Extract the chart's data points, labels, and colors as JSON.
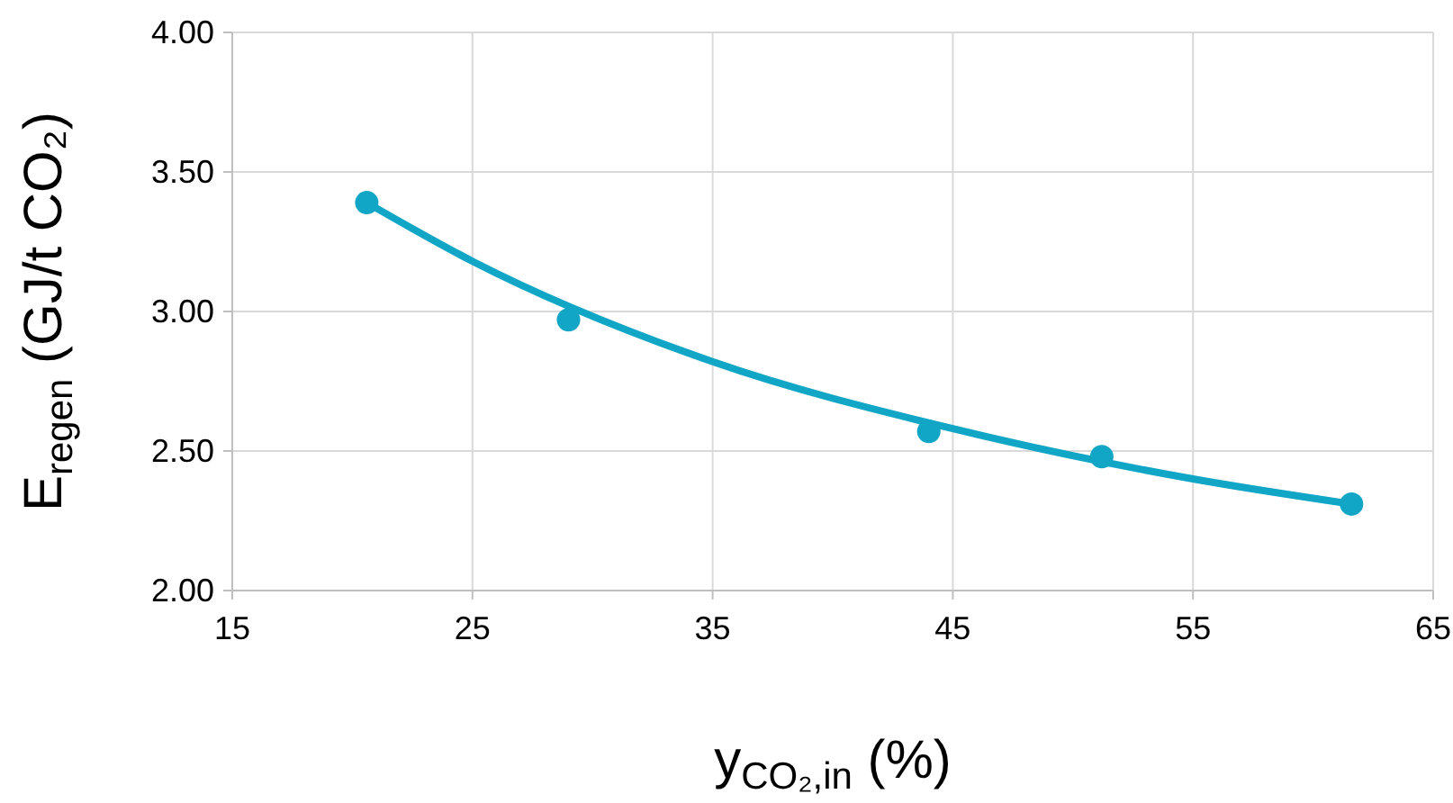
{
  "chart_data": {
    "type": "scatter",
    "xlabel": "y$_{CO₂,in}$ (%)",
    "ylabel": "E$_{regen}$ (GJ/t CO₂)",
    "xlim": [
      15,
      65
    ],
    "xticks": [
      15,
      25,
      35,
      45,
      55,
      65
    ],
    "ylim": [
      2,
      4
    ],
    "yticks": [
      {
        "value": 2,
        "label": "2.00"
      },
      {
        "value": 2.5,
        "label": "2.50"
      },
      {
        "value": 3,
        "label": "3.00"
      },
      {
        "value": 3.5,
        "label": "3.50"
      },
      {
        "value": 4,
        "label": "4.00"
      }
    ],
    "grid": true,
    "marker": "circle",
    "series": [
      {
        "color": "#12a6c6",
        "x": [
          20.6,
          29.0,
          44.0,
          51.2,
          61.6
        ],
        "values": [
          3.39,
          2.97,
          2.57,
          2.48,
          2.31
        ]
      },
      {
        "type": "line",
        "color": "#12a6c6",
        "marker": "none",
        "x": [
          20.6,
          25,
          35,
          45,
          55,
          61.6
        ],
        "values": [
          3.39,
          3.18,
          2.82,
          2.58,
          2.4,
          2.31
        ]
      }
    ]
  }
}
